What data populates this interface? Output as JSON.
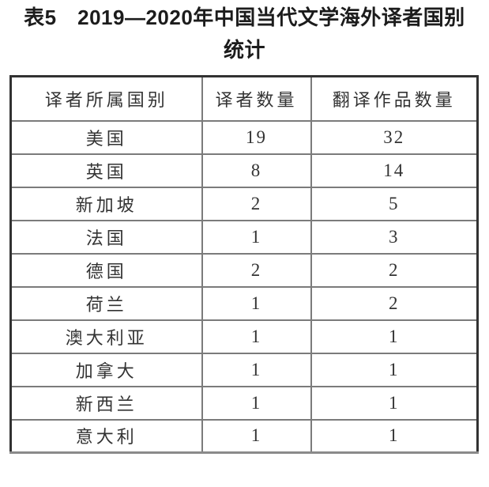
{
  "title": {
    "line1": "表5　2019—2020年中国当代文学海外译者国别",
    "line2": "统计"
  },
  "table": {
    "columns": [
      "译者所属国别",
      "译者数量",
      "翻译作品数量"
    ],
    "rows": [
      {
        "country": "美国",
        "translators": "19",
        "works": "32"
      },
      {
        "country": "英国",
        "translators": "8",
        "works": "14"
      },
      {
        "country": "新加坡",
        "translators": "2",
        "works": "5"
      },
      {
        "country": "法国",
        "translators": "1",
        "works": "3"
      },
      {
        "country": "德国",
        "translators": "2",
        "works": "2"
      },
      {
        "country": "荷兰",
        "translators": "1",
        "works": "2"
      },
      {
        "country": "澳大利亚",
        "translators": "1",
        "works": "1"
      },
      {
        "country": "加拿大",
        "translators": "1",
        "works": "1"
      },
      {
        "country": "新西兰",
        "translators": "1",
        "works": "1"
      },
      {
        "country": "意大利",
        "translators": "1",
        "works": "1"
      }
    ]
  },
  "colors": {
    "title_text": "#1c1c1c",
    "body_text": "#333333",
    "border_outer": "#323232",
    "border_inner": "#7b7b7b",
    "border_bottom": "#8a8a8a",
    "page_bg": "#ffffff"
  },
  "chart_data": {
    "type": "table",
    "title": "表5 2019—2020年中国当代文学海外译者国别统计",
    "columns": [
      "译者所属国别",
      "译者数量",
      "翻译作品数量"
    ],
    "rows": [
      [
        "美国",
        19,
        32
      ],
      [
        "英国",
        8,
        14
      ],
      [
        "新加坡",
        2,
        5
      ],
      [
        "法国",
        1,
        3
      ],
      [
        "德国",
        2,
        2
      ],
      [
        "荷兰",
        1,
        2
      ],
      [
        "澳大利亚",
        1,
        1
      ],
      [
        "加拿大",
        1,
        1
      ],
      [
        "新西兰",
        1,
        1
      ],
      [
        "意大利",
        1,
        1
      ]
    ]
  }
}
